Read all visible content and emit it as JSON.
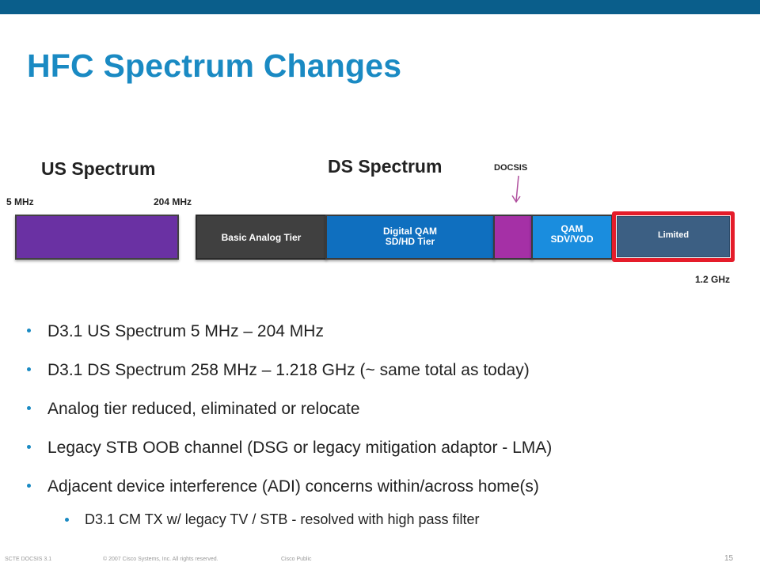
{
  "slide": {
    "title": "HFC Spectrum Changes",
    "accent_color": "#1a8ac3",
    "topbar_color": "#0a5e8b"
  },
  "diagram": {
    "us_heading": "US Spectrum",
    "ds_heading": "DS Spectrum",
    "docsis_label": "DOCSIS",
    "freq_start": "5 MHz",
    "freq_us_end": "204 MHz",
    "freq_end": "1.2 GHz",
    "bands": {
      "analog": "Basic Analog Tier",
      "digital_line1": "Digital QAM",
      "digital_line2": "SD/HD Tier",
      "qam_line1": "QAM",
      "qam_line2": "SDV/VOD",
      "limited": "Limited"
    },
    "colors": {
      "us_band": "#6a31a3",
      "analog": "#404040",
      "digital": "#0f6fbf",
      "docsis": "#a530a6",
      "qam": "#1a8dde",
      "limited": "#3c5f83",
      "highlight": "#e51c2a"
    }
  },
  "bullets": [
    "D3.1 US Spectrum 5 MHz – 204 MHz",
    "D3.1 DS Spectrum 258 MHz – 1.218 GHz (~ same total as today)",
    "Analog tier reduced, eliminated or relocate",
    "Legacy STB OOB channel (DSG or legacy mitigation adaptor - LMA)",
    "Adjacent device interference (ADI) concerns within/across home(s)"
  ],
  "sub_bullet": "D3.1 CM TX w/ legacy TV / STB - resolved with high pass filter",
  "footer": {
    "deck": "SCTE DOCSIS 3.1",
    "copyright": "© 2007 Cisco Systems, Inc. All rights reserved.",
    "classification": "Cisco Public",
    "page": "15"
  }
}
